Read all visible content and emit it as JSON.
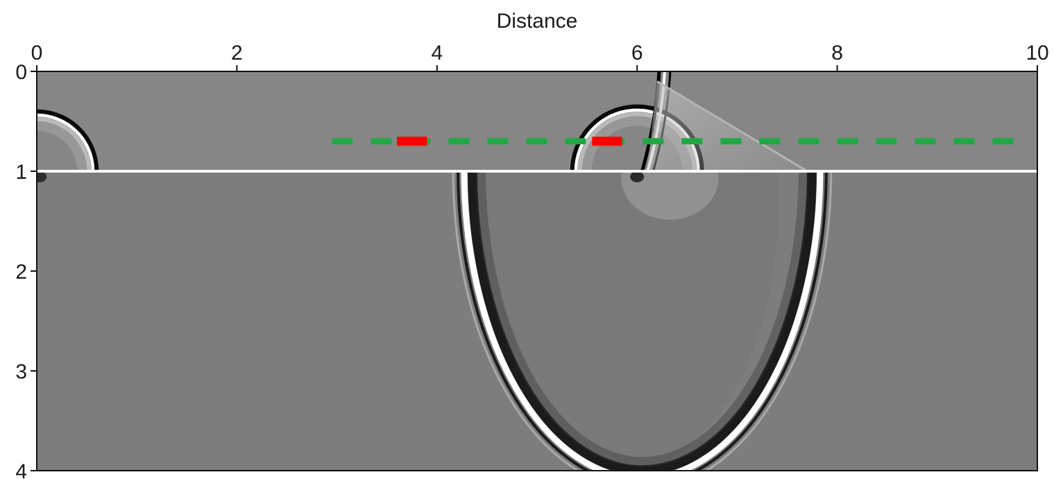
{
  "chart_data": {
    "type": "heatmap",
    "title": "",
    "xlabel": "Distance",
    "ylabel": "",
    "xlim": [
      0,
      10
    ],
    "ylim": [
      4,
      0
    ],
    "x_axis_position": "top",
    "x_ticks": [
      0,
      2,
      4,
      6,
      8,
      10
    ],
    "x_tick_labels": [
      "0",
      "2",
      "4",
      "6",
      "8",
      "10"
    ],
    "y_ticks": [
      0,
      1,
      2,
      3,
      4
    ],
    "y_tick_labels": [
      "0",
      "1",
      "2",
      "3",
      "4"
    ],
    "colormap": "grayscale",
    "interface_depth": 1.0,
    "wavefronts": [
      {
        "name": "source-a",
        "kind": "semicircle",
        "center_x": 0.0,
        "center_y": 1.0,
        "radius": 0.55,
        "domain": "above-interface"
      },
      {
        "name": "source-b",
        "kind": "semicircle",
        "center_x": 6.0,
        "center_y": 1.0,
        "radius": 0.6,
        "domain": "above-interface"
      },
      {
        "name": "head-wave",
        "kind": "line",
        "points": [
          [
            6.2,
            0.1
          ],
          [
            7.7,
            1.0
          ]
        ]
      },
      {
        "name": "transmitted",
        "kind": "arc",
        "center_x": 6.05,
        "center_y": 1.0,
        "radius_x": 1.75,
        "radius_y": 3.05,
        "domain": "below-interface"
      }
    ],
    "overlays": [
      {
        "name": "dashed-line",
        "color": "#1fa845",
        "y": 0.7,
        "x_range": [
          2.95,
          9.85
        ],
        "style": "dashed"
      },
      {
        "name": "red-segment-1",
        "color": "#ff0000",
        "y": 0.7,
        "x_range": [
          3.6,
          3.9
        ]
      },
      {
        "name": "red-segment-2",
        "color": "#ff0000",
        "y": 0.7,
        "x_range": [
          5.55,
          5.85
        ]
      }
    ]
  }
}
